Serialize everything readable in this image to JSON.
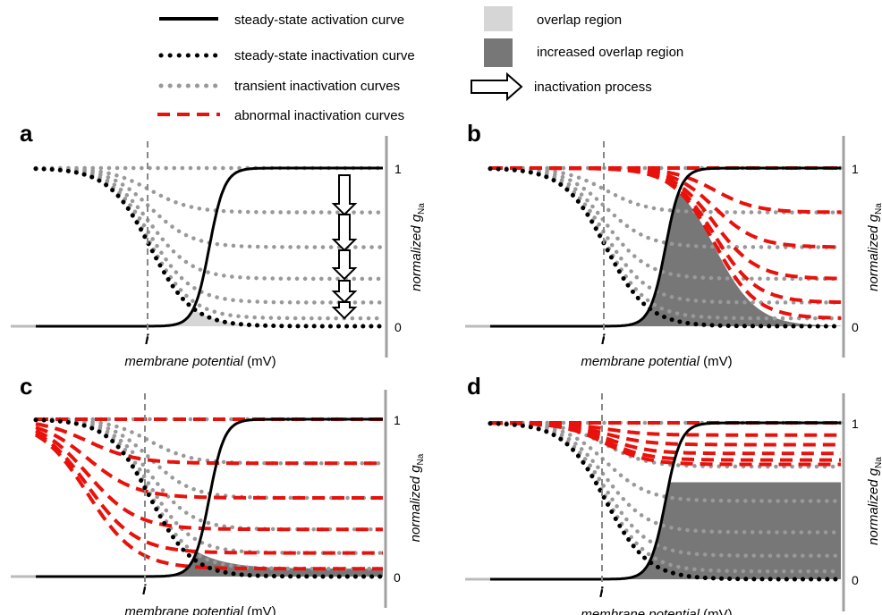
{
  "legend": {
    "activation": "steady-state activation curve",
    "ss_inactivation": "steady-state inactivation curve",
    "transient": "transient inactivation curves",
    "abnormal": "abnormal inactivation curves",
    "overlap": "overlap region",
    "increased_overlap": "increased overlap region",
    "process": "inactivation process"
  },
  "panels": [
    {
      "label": "a",
      "abnormal": "none"
    },
    {
      "label": "b",
      "abnormal": "right-shift"
    },
    {
      "label": "c",
      "abnormal": "left-shift"
    },
    {
      "label": "d",
      "abnormal": "incomplete"
    }
  ],
  "axis": {
    "xlabel_italic": "membrane potential",
    "xlabel_unit": " (mV)",
    "ylabel_italic": "normalized g",
    "ylabel_sub": "Na",
    "tick_top": "1",
    "tick_bottom": "0",
    "marker": "i"
  },
  "transient_plateaus": [
    1.0,
    0.72,
    0.5,
    0.3,
    0.15,
    0.05
  ],
  "colors": {
    "activation": "#000000",
    "ss_inactivation": "#000000",
    "transient": "#999999",
    "abnormal": "#e8120c",
    "overlap": "#d6d6d6",
    "increased_overlap": "#777777",
    "axis": "#a0a0a0",
    "marker_line": "#888888"
  }
}
